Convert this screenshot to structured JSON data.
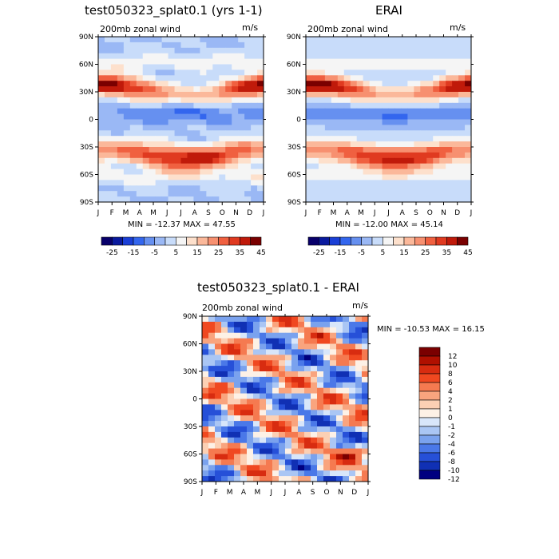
{
  "panels": {
    "top_left": {
      "title": "test050323_splat0.1 (yrs 1-1)",
      "subtitle": "200mb zonal wind",
      "units": "m/s",
      "stats": "MIN = -12.37 MAX =  47.55"
    },
    "top_right": {
      "title": "ERAI",
      "subtitle": "200mb zonal wind",
      "units": "m/s",
      "stats": "MIN = -12.00 MAX =  45.14"
    },
    "bottom": {
      "title": "test050323_splat0.1 - ERAI",
      "subtitle": "200mb zonal wind",
      "units": "m/s",
      "stats": "MIN = -10.53 MAX =  16.15"
    }
  },
  "chart_data": [
    {
      "type": "heatmap",
      "title": "test050323_splat0.1 (yrs 1-1)",
      "subtitle": "200mb zonal wind (m/s)",
      "x_ticks": [
        "J",
        "F",
        "M",
        "A",
        "M",
        "J",
        "J",
        "A",
        "S",
        "O",
        "N",
        "D",
        "J"
      ],
      "y_ticks": [
        "90N",
        "60N",
        "30N",
        "0",
        "30S",
        "60S",
        "90S"
      ],
      "min": -12.37,
      "max": 47.55,
      "colorbar_labels": [
        "-25",
        "-15",
        "-5",
        "5",
        "15",
        "25",
        "35",
        "45"
      ]
    },
    {
      "type": "heatmap",
      "title": "ERAI",
      "subtitle": "200mb zonal wind (m/s)",
      "x_ticks": [
        "J",
        "F",
        "M",
        "A",
        "M",
        "J",
        "J",
        "A",
        "S",
        "O",
        "N",
        "D",
        "J"
      ],
      "y_ticks": [
        "90N",
        "60N",
        "30N",
        "0",
        "30S",
        "60S",
        "90S"
      ],
      "min": -12.0,
      "max": 45.14,
      "colorbar_labels": [
        "-25",
        "-15",
        "-5",
        "5",
        "15",
        "25",
        "35",
        "45"
      ]
    },
    {
      "type": "heatmap",
      "title": "test050323_splat0.1 - ERAI",
      "subtitle": "200mb zonal wind (m/s)",
      "x_ticks": [
        "J",
        "F",
        "M",
        "A",
        "M",
        "J",
        "J",
        "A",
        "S",
        "O",
        "N",
        "D",
        "J"
      ],
      "y_ticks": [
        "90N",
        "60N",
        "30N",
        "0",
        "30S",
        "60S",
        "90S"
      ],
      "min": -10.53,
      "max": 16.15,
      "colorbar_labels": [
        "12",
        "10",
        "8",
        "6",
        "4",
        "2",
        "1",
        "0",
        "-1",
        "-2",
        "-4",
        "-6",
        "-8",
        "-10",
        "-12"
      ]
    }
  ],
  "colors": {
    "full_scale": [
      "#08006b",
      "#0a1a9e",
      "#1a3fd6",
      "#3366ee",
      "#6690f0",
      "#9ab8f5",
      "#c8dcfa",
      "#f5f5f5",
      "#fde0cc",
      "#fbb89a",
      "#f79070",
      "#f06040",
      "#e03a20",
      "#c01a0a",
      "#7a0000"
    ],
    "diff_scale": [
      "#7a0000",
      "#b01000",
      "#d82c10",
      "#f04820",
      "#f57a50",
      "#f9a47e",
      "#fcd0b4",
      "#fdf1e6",
      "#d8e6fa",
      "#aac6f4",
      "#7aa2ee",
      "#4a78e8",
      "#2650d8",
      "#1030b4",
      "#000080"
    ]
  }
}
